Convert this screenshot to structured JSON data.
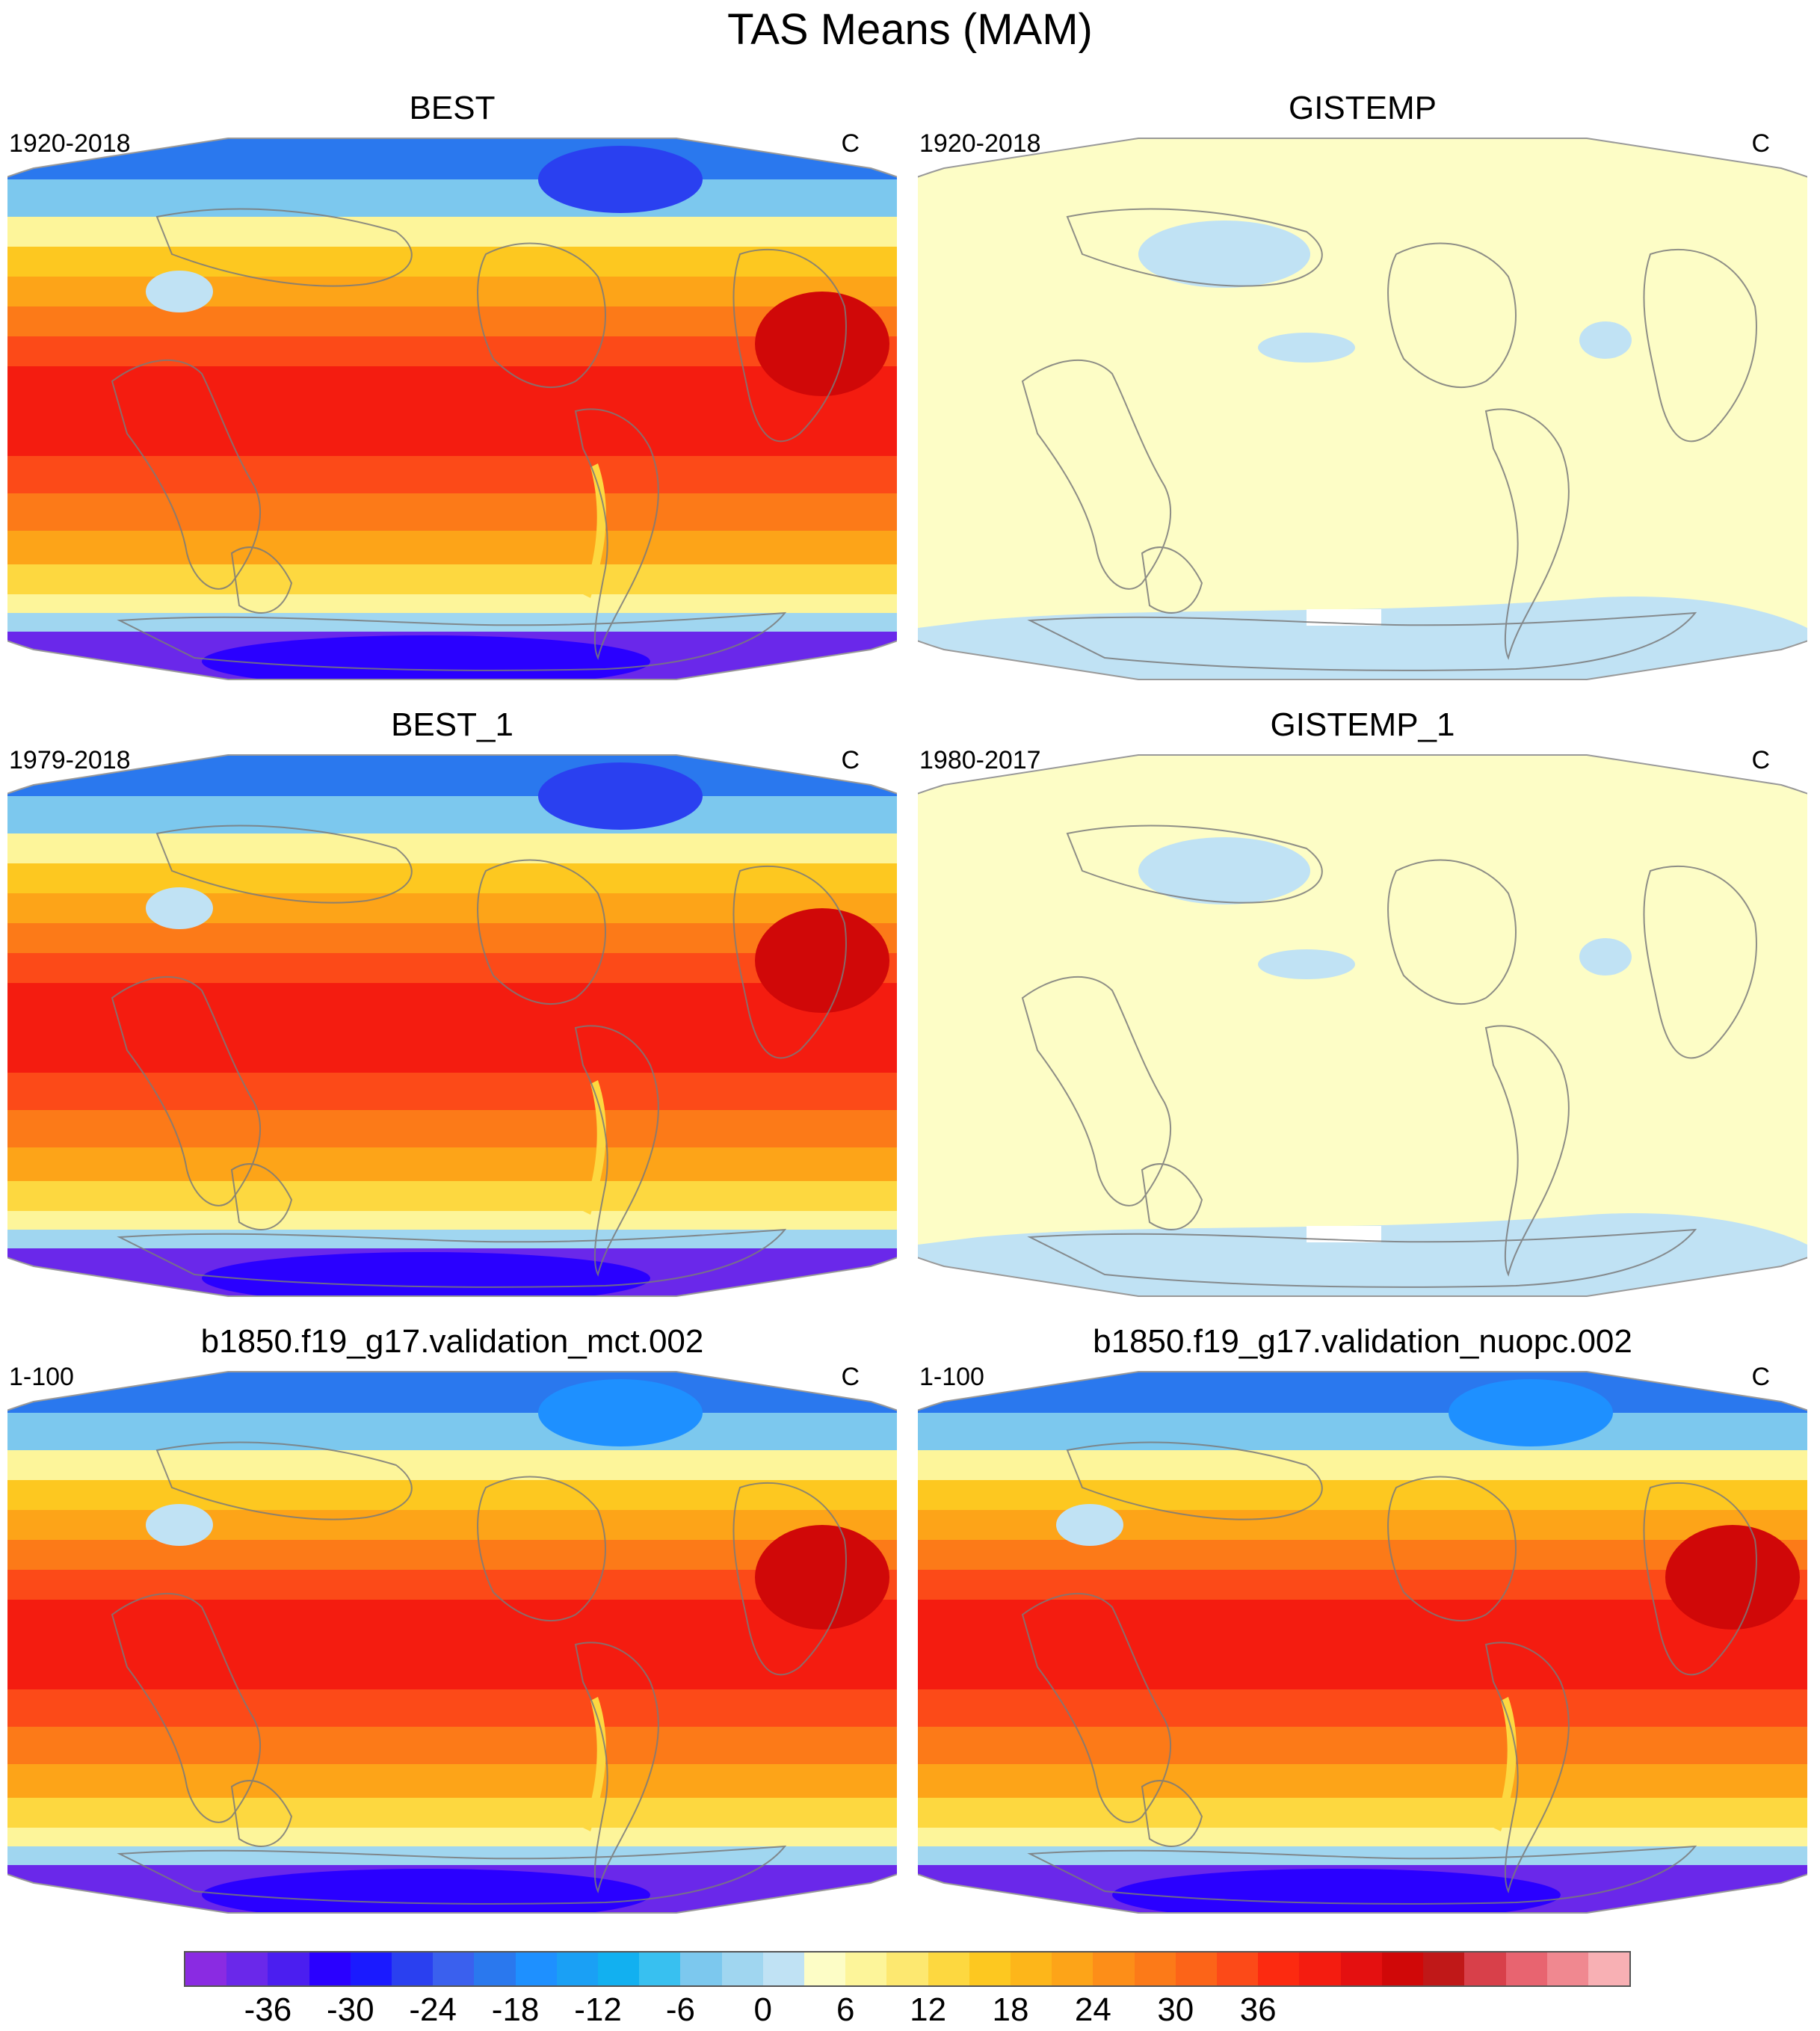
{
  "title": "TAS Means (MAM)",
  "panels": [
    {
      "title": "BEST",
      "period": "1920-2018",
      "units": "C",
      "style": "best"
    },
    {
      "title": "GISTEMP",
      "period": "1920-2018",
      "units": "C",
      "style": "gistemp"
    },
    {
      "title": "BEST_1",
      "period": "1979-2018",
      "units": "C",
      "style": "best"
    },
    {
      "title": "GISTEMP_1",
      "period": "1980-2017",
      "units": "C",
      "style": "gistemp"
    },
    {
      "title": "b1850.f19_g17.validation_mct.002",
      "period": "1-100",
      "units": "C",
      "style": "model"
    },
    {
      "title": "b1850.f19_g17.validation_nuopc.002",
      "period": "1-100",
      "units": "C",
      "style": "model"
    }
  ],
  "colorbar": {
    "colors": [
      "#8a2be2",
      "#6a28ea",
      "#4b1ef0",
      "#2a00ff",
      "#1a1aff",
      "#2a40f0",
      "#3a60ee",
      "#2a78ee",
      "#1e90ff",
      "#1aa0f5",
      "#12b0f0",
      "#38c0f0",
      "#7cc8ee",
      "#a0d6f0",
      "#c0e2f4",
      "#fdfdc6",
      "#fdf59a",
      "#fde870",
      "#fdd840",
      "#fdc820",
      "#fdb61a",
      "#fda418",
      "#fd8e18",
      "#fc7a18",
      "#fc6418",
      "#fc4a18",
      "#fc2a10",
      "#f41c10",
      "#e41010",
      "#d00808",
      "#c01818",
      "#d8404a",
      "#e86470",
      "#f08890",
      "#f8b0b4"
    ],
    "labels": [
      "-36",
      "-30",
      "-24",
      "-18",
      "-12",
      "-6",
      "0",
      "6",
      "12",
      "18",
      "24",
      "30",
      "36"
    ],
    "label_positions": [
      2,
      4,
      6,
      8,
      10,
      12,
      14,
      16,
      18,
      20,
      22,
      24,
      26
    ]
  }
}
